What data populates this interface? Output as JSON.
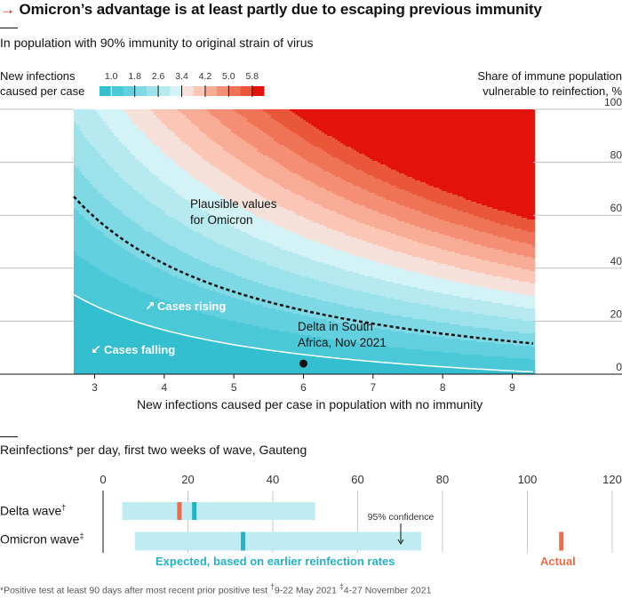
{
  "title": {
    "arrow": "→",
    "text": "Omicron’s advantage is at least partly due to escaping previous immunity"
  },
  "colors": {
    "accent_red": "#e3120b",
    "scale": [
      "#33bfd0",
      "#4ac8d8",
      "#62d0de",
      "#7fd9e4",
      "#9be2ea",
      "#b7eaf0",
      "#d4f3f6",
      "#f6e1da",
      "#fbc6b6",
      "#f8ab95",
      "#f48f75",
      "#ef7356",
      "#ea5638",
      "#e3120b"
    ],
    "ci_band": "#bfecf2",
    "expected": "#23b2c6",
    "actual": "#ef6a47"
  },
  "chart_data": [
    {
      "type": "heatmap",
      "subtitle": "In population with 90% immunity to original strain of virus",
      "legend_title_lines": [
        "New infections",
        "caused per case"
      ],
      "legend_ticks": [
        "1.0",
        "1.8",
        "2.6",
        "3.4",
        "4.2",
        "5.0",
        "5.8"
      ],
      "legend_min": 0.6,
      "legend_max": 6.2,
      "threshold": 1.0,
      "xlabel": "New infections caused per case in population with no immunity",
      "ylabel_lines": [
        "Share of immune population",
        "vulnerable to reinfection, %"
      ],
      "xlim": [
        2.7,
        9.3
      ],
      "ylim": [
        0,
        100
      ],
      "xticks": [
        3,
        4,
        5,
        6,
        7,
        8,
        9
      ],
      "yticks": [
        0,
        20,
        40,
        60,
        80,
        100
      ],
      "immunity_share": 0.9,
      "formula": "Rt = R0 * (0.1 + 0.9 * y/100)",
      "plausible_curve_rt": 1.9,
      "annotations": {
        "plausible": [
          "Plausible values",
          "for Omicron"
        ],
        "rising": "Cases rising",
        "falling": "Cases falling",
        "delta": [
          "Delta in South",
          "Africa, Nov 2021"
        ]
      },
      "delta_point": {
        "x": 6.0,
        "y": 4
      }
    },
    {
      "type": "range",
      "subtitle": "Reinfections* per day, first two weeks of wave, Gauteng",
      "xlim": [
        0,
        120
      ],
      "xticks": [
        0,
        20,
        40,
        60,
        80,
        100,
        120
      ],
      "rows": [
        {
          "label": "Delta wave",
          "marker": "†",
          "ci_low": 4.5,
          "ci_high": 50,
          "expected": 21.5,
          "actual": 18
        },
        {
          "label": "Omicron wave",
          "marker": "‡",
          "ci_low": 7.5,
          "ci_high": 75,
          "expected": 33,
          "actual": 108
        }
      ],
      "ci_annotation": "95% confidence",
      "legend_expected": "Expected, based on earlier reinfection rates",
      "legend_actual": "Actual"
    }
  ],
  "footnote": {
    "main": "*Positive test at least 90 days after most recent prior positive test",
    "dagger": "†",
    "dagger_text": "9-22 May 2021",
    "ddagger": "‡",
    "ddagger_text": "4-27 November 2021"
  }
}
